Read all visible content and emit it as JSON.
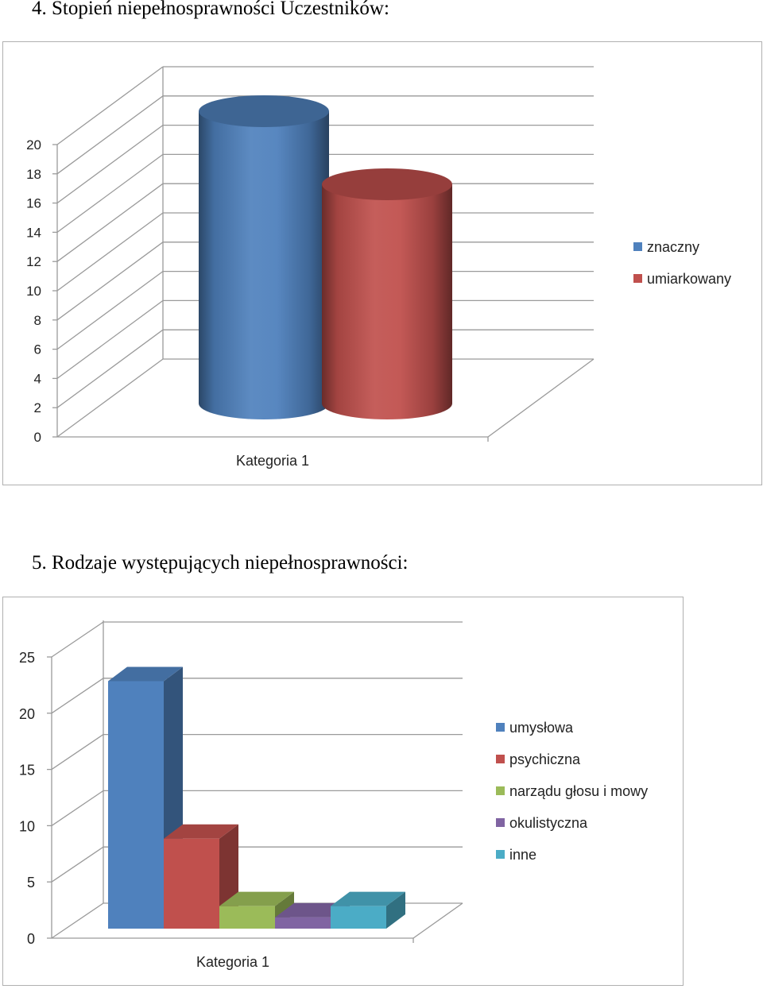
{
  "headings": {
    "chart1": "4.   Stopień niepełnosprawności Uczestników:",
    "chart2": "5.   Rodzaje występujących niepełnosprawności:"
  },
  "chart_data": [
    {
      "type": "bar",
      "style": "3d-cylinder",
      "categories": [
        "Kategoria 1"
      ],
      "series": [
        {
          "name": "znaczny",
          "values": [
            20
          ],
          "color": "#4f81bd"
        },
        {
          "name": "umiarkowany",
          "values": [
            15
          ],
          "color": "#c0504d"
        }
      ],
      "yticks": [
        "0",
        "2",
        "4",
        "6",
        "8",
        "10",
        "12",
        "14",
        "16",
        "18",
        "20"
      ],
      "ylim": [
        0,
        20
      ],
      "legend": "right",
      "grid": true
    },
    {
      "type": "bar",
      "style": "3d-box",
      "categories": [
        "Kategoria 1"
      ],
      "series": [
        {
          "name": "umysłowa",
          "values": [
            22
          ],
          "color": "#4f81bd"
        },
        {
          "name": "psychiczna",
          "values": [
            8
          ],
          "color": "#c0504d"
        },
        {
          "name": "narządu głosu i mowy",
          "values": [
            2
          ],
          "color": "#9bbb59"
        },
        {
          "name": "okulistyczna",
          "values": [
            1
          ],
          "color": "#8064a2"
        },
        {
          "name": "inne",
          "values": [
            2
          ],
          "color": "#4bacc6"
        }
      ],
      "yticks": [
        "0",
        "5",
        "10",
        "15",
        "20",
        "25"
      ],
      "ylim": [
        0,
        25
      ],
      "legend": "right",
      "grid": true
    }
  ]
}
